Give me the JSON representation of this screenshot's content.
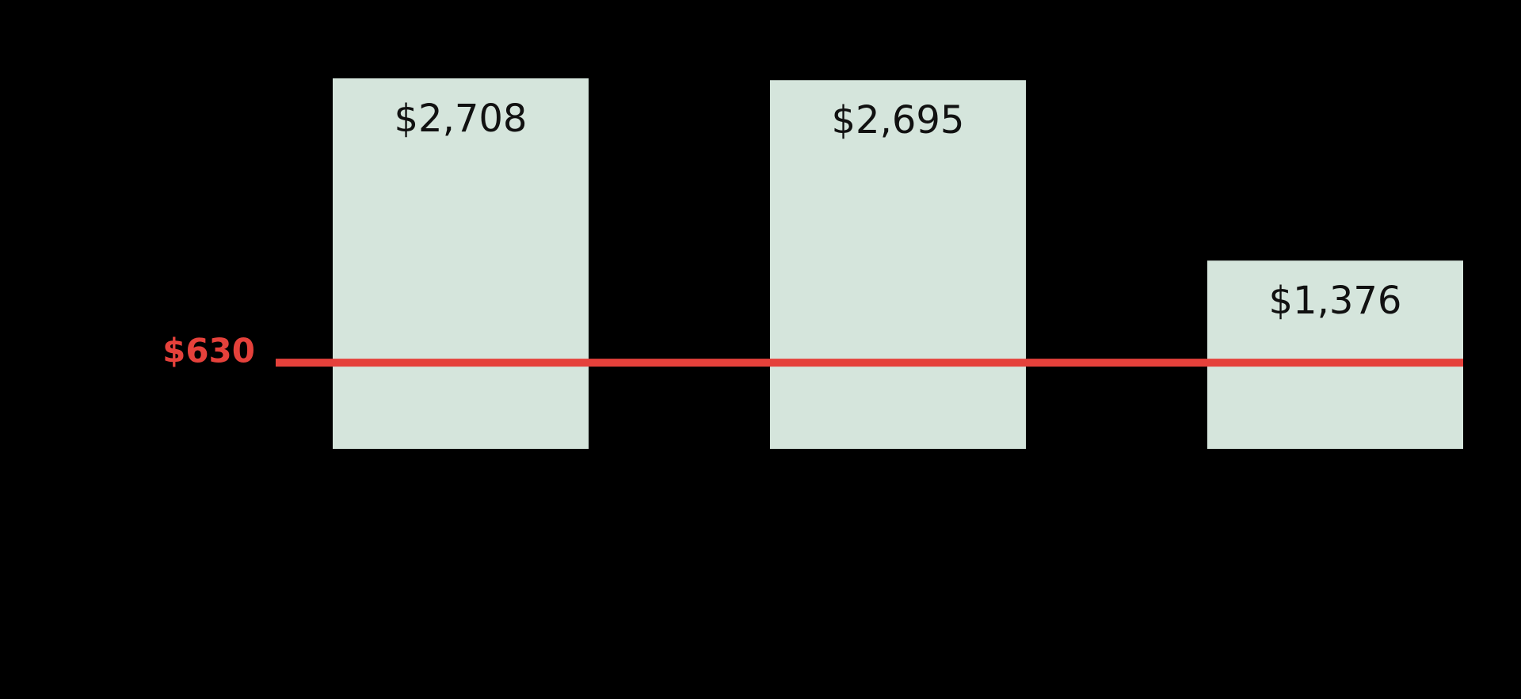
{
  "chart_data": {
    "type": "bar",
    "categories": [
      null,
      null,
      null
    ],
    "values": [
      2708,
      2695,
      1376
    ],
    "value_labels": [
      "$2,708",
      "$2,695",
      "$1,376"
    ],
    "color": "#d5e5dc",
    "reference_line": {
      "value": 630,
      "label": "$630",
      "color": "#e5413b"
    }
  }
}
